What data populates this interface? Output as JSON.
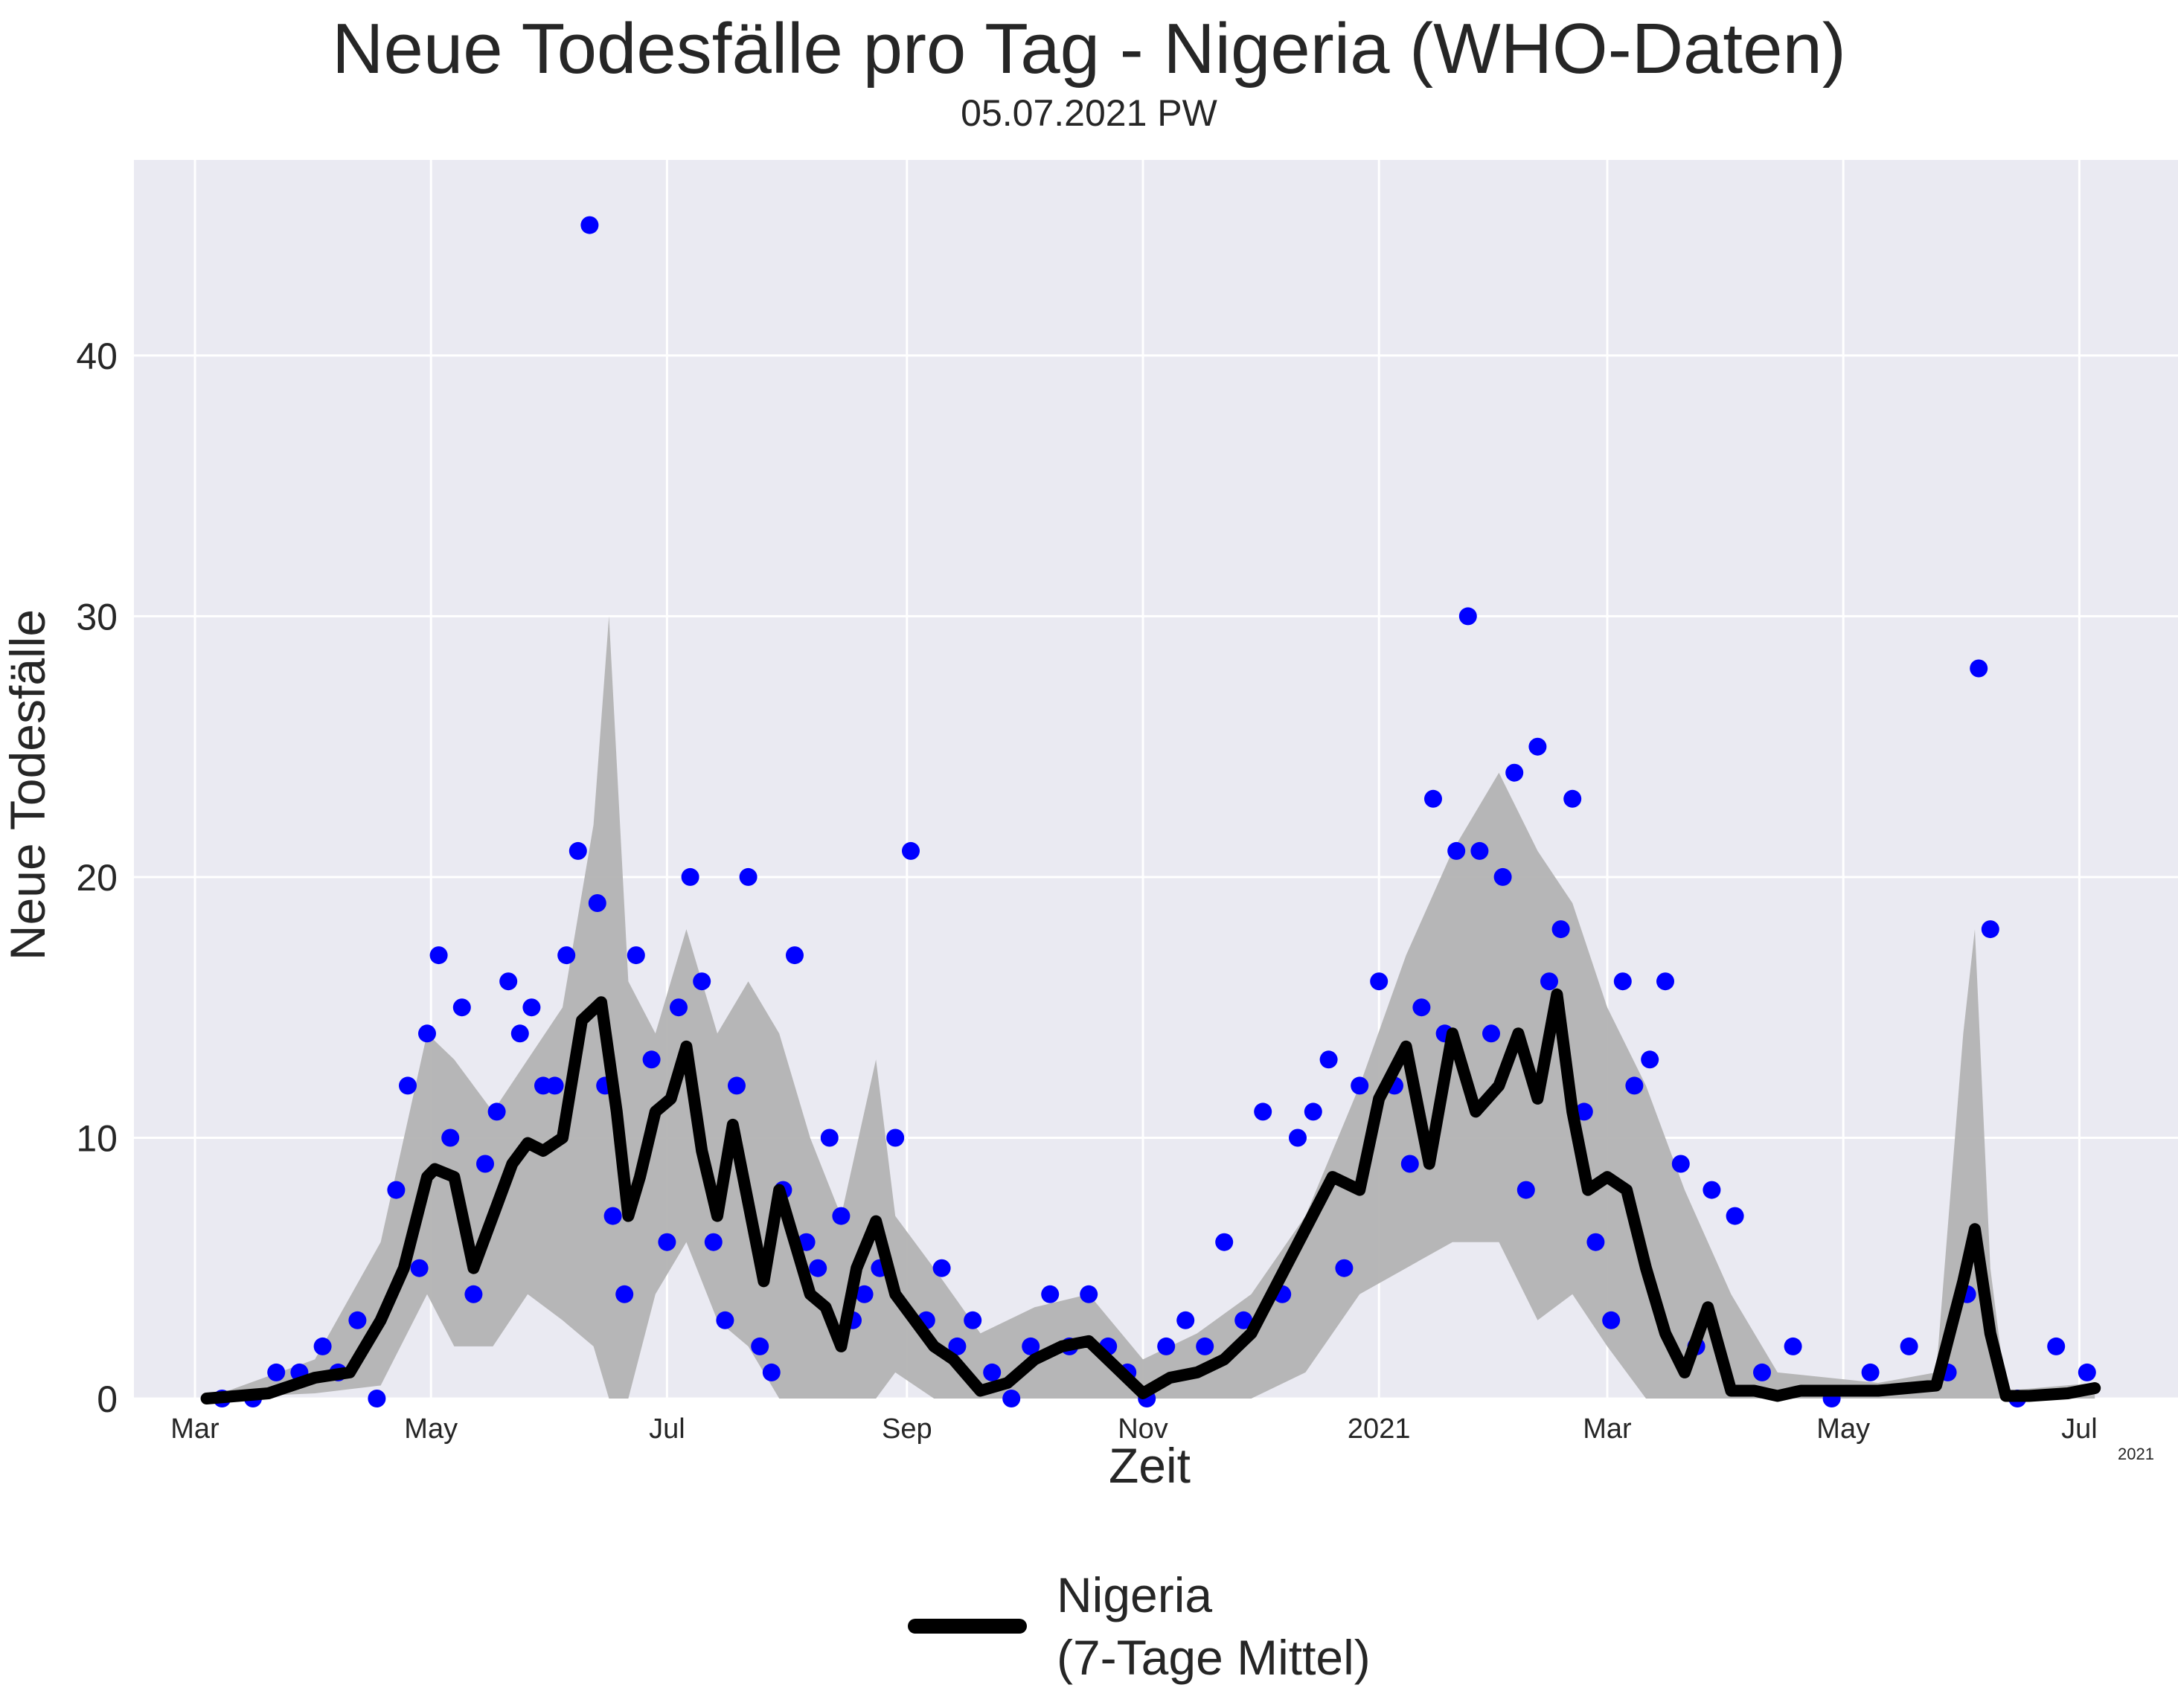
{
  "chart_data": {
    "type": "scatter+line",
    "title": "Neue Todesfälle pro Tag - Nigeria (WHO-Daten)",
    "subtitle": "05.07.2021 PW",
    "xlabel": "Zeit",
    "ylabel": "Neue Todesfälle",
    "x_tick_labels": [
      "Mar",
      "May",
      "Jul",
      "Sep",
      "Nov",
      "2021",
      "Mar",
      "May",
      "Jul"
    ],
    "x_offset_label": "2021",
    "y_ticks": [
      0,
      10,
      20,
      30,
      40
    ],
    "ylim": [
      0,
      47.5
    ],
    "grid": true,
    "legend": {
      "placement": "bottom-center",
      "entries": [
        {
          "line1": "Nigeria",
          "line2": "(7-Tage Mittel)",
          "color": "#000000"
        }
      ]
    },
    "colors": {
      "background": "#eaeaf2",
      "grid": "#ffffff",
      "points": "#0000ff",
      "line": "#000000",
      "band": "#b3b3b3"
    },
    "series": [
      {
        "name": "Nigeria (7-Tage Mittel)",
        "kind": "line",
        "x": [
          "2020-03-04",
          "2020-03-20",
          "2020-04-01",
          "2020-04-10",
          "2020-04-18",
          "2020-04-24",
          "2020-04-30",
          "2020-05-02",
          "2020-05-07",
          "2020-05-12",
          "2020-05-17",
          "2020-05-22",
          "2020-05-26",
          "2020-05-30",
          "2020-06-04",
          "2020-06-09",
          "2020-06-14",
          "2020-06-18",
          "2020-06-21",
          "2020-06-24",
          "2020-06-28",
          "2020-07-02",
          "2020-07-06",
          "2020-07-10",
          "2020-07-14",
          "2020-07-18",
          "2020-07-22",
          "2020-07-26",
          "2020-07-30",
          "2020-08-03",
          "2020-08-07",
          "2020-08-11",
          "2020-08-15",
          "2020-08-19",
          "2020-08-24",
          "2020-08-29",
          "2020-09-03",
          "2020-09-08",
          "2020-09-13",
          "2020-09-20",
          "2020-09-27",
          "2020-10-04",
          "2020-10-11",
          "2020-10-18",
          "2020-10-25",
          "2020-11-01",
          "2020-11-08",
          "2020-11-15",
          "2020-11-22",
          "2020-11-29",
          "2020-12-06",
          "2020-12-13",
          "2020-12-20",
          "2020-12-27",
          "2021-01-01",
          "2021-01-08",
          "2021-01-14",
          "2021-01-20",
          "2021-01-26",
          "2021-02-01",
          "2021-02-06",
          "2021-02-11",
          "2021-02-16",
          "2021-02-20",
          "2021-02-24",
          "2021-03-01",
          "2021-03-06",
          "2021-03-11",
          "2021-03-16",
          "2021-03-21",
          "2021-03-27",
          "2021-04-02",
          "2021-04-08",
          "2021-04-14",
          "2021-04-20",
          "2021-04-28",
          "2021-05-10",
          "2021-05-25",
          "2021-06-01",
          "2021-06-04",
          "2021-06-08",
          "2021-06-12",
          "2021-06-18",
          "2021-06-28",
          "2021-07-05"
        ],
        "y": [
          0,
          0.2,
          0.8,
          1.0,
          3.0,
          5.0,
          8.5,
          8.8,
          8.5,
          5.0,
          7.0,
          9.0,
          9.8,
          9.5,
          10.0,
          14.5,
          15.2,
          11.0,
          7.0,
          8.5,
          11.0,
          11.5,
          13.5,
          9.5,
          7.0,
          10.5,
          7.5,
          4.5,
          8.0,
          6.0,
          4.0,
          3.5,
          2.0,
          5.0,
          6.8,
          4.0,
          3.0,
          2.0,
          1.5,
          0.3,
          0.6,
          1.5,
          2.0,
          2.2,
          1.2,
          0.2,
          0.8,
          1.0,
          1.5,
          2.5,
          4.5,
          6.5,
          8.5,
          8.0,
          11.5,
          13.5,
          9.0,
          14.0,
          11.0,
          12.0,
          14.0,
          11.5,
          15.5,
          11.0,
          8.0,
          8.5,
          8.0,
          5.0,
          2.5,
          1.0,
          3.5,
          0.3,
          0.3,
          0.1,
          0.3,
          0.3,
          0.3,
          0.5,
          4.5,
          6.5,
          2.5,
          0.1,
          0.1,
          0.2,
          0.4
        ]
      },
      {
        "name": "band",
        "kind": "band",
        "x": [
          "2020-03-04",
          "2020-04-01",
          "2020-04-18",
          "2020-04-30",
          "2020-05-07",
          "2020-05-17",
          "2020-05-26",
          "2020-06-04",
          "2020-06-12",
          "2020-06-16",
          "2020-06-21",
          "2020-06-28",
          "2020-07-06",
          "2020-07-14",
          "2020-07-22",
          "2020-07-30",
          "2020-08-07",
          "2020-08-15",
          "2020-08-24",
          "2020-08-29",
          "2020-09-08",
          "2020-09-20",
          "2020-10-04",
          "2020-10-18",
          "2020-11-01",
          "2020-11-15",
          "2020-11-29",
          "2020-12-13",
          "2020-12-27",
          "2021-01-08",
          "2021-01-20",
          "2021-02-01",
          "2021-02-11",
          "2021-02-20",
          "2021-03-01",
          "2021-03-11",
          "2021-03-21",
          "2021-04-02",
          "2021-04-14",
          "2021-05-10",
          "2021-05-25",
          "2021-06-01",
          "2021-06-04",
          "2021-06-08",
          "2021-06-12",
          "2021-07-05"
        ],
        "upper": [
          0,
          1.5,
          6,
          14,
          13,
          11,
          13,
          15,
          22,
          30,
          16,
          14,
          18,
          14,
          16,
          14,
          10,
          7,
          13,
          7,
          5,
          2.5,
          3.5,
          4,
          1.5,
          2.5,
          4,
          7,
          12,
          17,
          21,
          24,
          21,
          19,
          15,
          12,
          8,
          4,
          1,
          0.6,
          1,
          14,
          18,
          5,
          0.3,
          0.6
        ],
        "lower": [
          0,
          0.2,
          0.5,
          4,
          2,
          2,
          4,
          3,
          2,
          0,
          0,
          4,
          6,
          3,
          2,
          0,
          0,
          0,
          0,
          1,
          0,
          0,
          0,
          0,
          0,
          0,
          0,
          1,
          4,
          5,
          6,
          6,
          3,
          4,
          2,
          0,
          0,
          0,
          0,
          0,
          0,
          0,
          0,
          0,
          0,
          0
        ]
      },
      {
        "name": "Tageswerte",
        "kind": "scatter",
        "x": [
          "2020-03-08",
          "2020-03-16",
          "2020-03-22",
          "2020-03-28",
          "2020-04-03",
          "2020-04-07",
          "2020-04-12",
          "2020-04-17",
          "2020-04-22",
          "2020-04-25",
          "2020-04-28",
          "2020-04-30",
          "2020-05-03",
          "2020-05-06",
          "2020-05-09",
          "2020-05-12",
          "2020-05-15",
          "2020-05-18",
          "2020-05-21",
          "2020-05-24",
          "2020-05-27",
          "2020-05-30",
          "2020-06-02",
          "2020-06-05",
          "2020-06-08",
          "2020-06-11",
          "2020-06-13",
          "2020-06-15",
          "2020-06-17",
          "2020-06-20",
          "2020-06-23",
          "2020-06-27",
          "2020-07-01",
          "2020-07-04",
          "2020-07-07",
          "2020-07-10",
          "2020-07-13",
          "2020-07-16",
          "2020-07-19",
          "2020-07-22",
          "2020-07-25",
          "2020-07-28",
          "2020-07-31",
          "2020-08-03",
          "2020-08-06",
          "2020-08-09",
          "2020-08-12",
          "2020-08-15",
          "2020-08-18",
          "2020-08-21",
          "2020-08-25",
          "2020-08-29",
          "2020-09-02",
          "2020-09-06",
          "2020-09-10",
          "2020-09-14",
          "2020-09-18",
          "2020-09-23",
          "2020-09-28",
          "2020-10-03",
          "2020-10-08",
          "2020-10-13",
          "2020-10-18",
          "2020-10-23",
          "2020-10-28",
          "2020-11-02",
          "2020-11-07",
          "2020-11-12",
          "2020-11-17",
          "2020-11-22",
          "2020-11-27",
          "2020-12-02",
          "2020-12-07",
          "2020-12-11",
          "2020-12-15",
          "2020-12-19",
          "2020-12-23",
          "2020-12-27",
          "2021-01-01",
          "2021-01-05",
          "2021-01-09",
          "2021-01-12",
          "2021-01-15",
          "2021-01-18",
          "2021-01-21",
          "2021-01-24",
          "2021-01-27",
          "2021-01-30",
          "2021-02-02",
          "2021-02-05",
          "2021-02-08",
          "2021-02-11",
          "2021-02-14",
          "2021-02-17",
          "2021-02-20",
          "2021-02-23",
          "2021-02-26",
          "2021-03-02",
          "2021-03-05",
          "2021-03-08",
          "2021-03-12",
          "2021-03-16",
          "2021-03-20",
          "2021-03-24",
          "2021-03-28",
          "2021-04-03",
          "2021-04-10",
          "2021-04-18",
          "2021-04-28",
          "2021-05-08",
          "2021-05-18",
          "2021-05-28",
          "2021-06-02",
          "2021-06-05",
          "2021-06-08",
          "2021-06-15",
          "2021-06-25",
          "2021-07-03"
        ],
        "y": [
          0,
          0,
          1,
          1,
          2,
          1,
          3,
          0,
          8,
          12,
          5,
          14,
          17,
          10,
          15,
          4,
          9,
          11,
          16,
          14,
          15,
          12,
          12,
          17,
          21,
          45,
          19,
          12,
          7,
          4,
          17,
          13,
          6,
          15,
          20,
          16,
          6,
          3,
          12,
          20,
          2,
          1,
          8,
          17,
          6,
          5,
          10,
          7,
          3,
          4,
          5,
          10,
          21,
          3,
          5,
          2,
          3,
          1,
          0,
          2,
          4,
          2,
          4,
          2,
          1,
          0,
          2,
          3,
          2,
          6,
          3,
          11,
          4,
          10,
          11,
          13,
          5,
          12,
          16,
          12,
          9,
          15,
          23,
          14,
          21,
          30,
          21,
          14,
          20,
          24,
          8,
          25,
          16,
          18,
          23,
          11,
          6,
          3,
          16,
          12,
          13,
          16,
          9,
          2,
          8,
          7,
          1,
          2,
          0,
          1,
          2,
          1,
          4,
          28,
          18,
          0,
          2,
          1
        ]
      }
    ]
  }
}
